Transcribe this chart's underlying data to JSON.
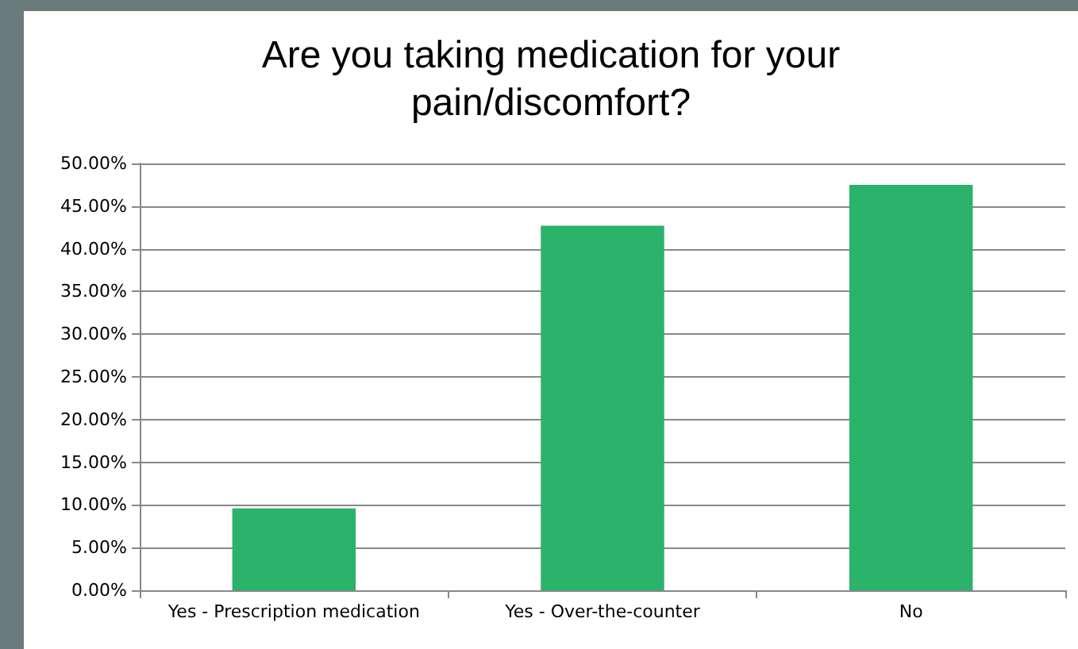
{
  "chart_data": {
    "type": "bar",
    "title": "Are you taking medication for your\npain/discomfort?",
    "categories": [
      "Yes - Prescription medication",
      "Yes - Over-the-counter",
      "No"
    ],
    "values": [
      9.6,
      42.7,
      47.5
    ],
    "color": "#2bb26b",
    "ylim": [
      0,
      50
    ],
    "yticks": [
      {
        "value": 0,
        "label": "0.00%"
      },
      {
        "value": 5,
        "label": "5.00%"
      },
      {
        "value": 10,
        "label": "10.00%"
      },
      {
        "value": 15,
        "label": "15.00%"
      },
      {
        "value": 20,
        "label": "20.00%"
      },
      {
        "value": 25,
        "label": "25.00%"
      },
      {
        "value": 30,
        "label": "30.00%"
      },
      {
        "value": 35,
        "label": "35.00%"
      },
      {
        "value": 40,
        "label": "40.00%"
      },
      {
        "value": 45,
        "label": "45.00%"
      },
      {
        "value": 50,
        "label": "50.00%"
      }
    ],
    "grid": true
  }
}
